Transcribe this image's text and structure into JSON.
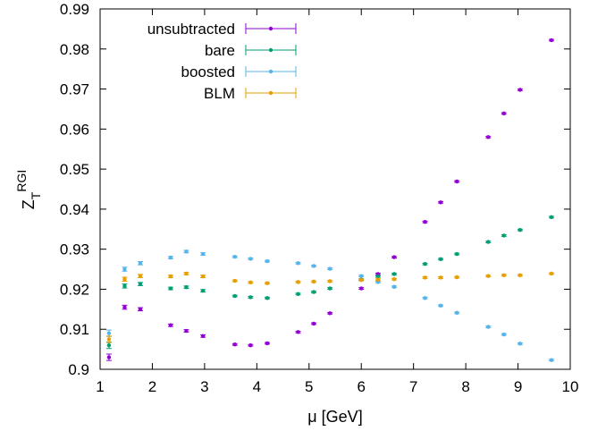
{
  "chart_data": {
    "type": "scatter",
    "xlabel": "μ [GeV]",
    "ylabel": {
      "main": "Z",
      "sub": "T",
      "sup": "RGI"
    },
    "xlim": [
      1,
      10
    ],
    "ylim": [
      0.9,
      0.99
    ],
    "xticks": [
      "1",
      "2",
      "3",
      "4",
      "5",
      "6",
      "7",
      "8",
      "9",
      "10"
    ],
    "yticks": [
      "0.9",
      "0.91",
      "0.92",
      "0.93",
      "0.94",
      "0.95",
      "0.96",
      "0.97",
      "0.98",
      "0.99"
    ],
    "xtick_values": [
      1,
      2,
      3,
      4,
      5,
      6,
      7,
      8,
      9,
      10
    ],
    "ytick_values": [
      0.9,
      0.91,
      0.92,
      0.93,
      0.94,
      0.95,
      0.96,
      0.97,
      0.98,
      0.99
    ],
    "grid": false,
    "legend_position": "top-left",
    "series": [
      {
        "name": "unsubtracted",
        "color": "#9400d3",
        "x": [
          1.17,
          1.47,
          1.77,
          2.35,
          2.65,
          2.97,
          3.58,
          3.88,
          4.2,
          4.79,
          5.09,
          5.4,
          6.0,
          6.32,
          6.63,
          7.22,
          7.52,
          7.83,
          8.43,
          8.73,
          9.04,
          9.64
        ],
        "y": [
          0.903,
          0.9155,
          0.915,
          0.911,
          0.9096,
          0.9083,
          0.9062,
          0.906,
          0.9065,
          0.9093,
          0.9114,
          0.914,
          0.9202,
          0.9238,
          0.928,
          0.9368,
          0.9417,
          0.9469,
          0.958,
          0.9639,
          0.9698,
          0.9822
        ],
        "err": [
          0.0008,
          0.0005,
          0.0004,
          0.0003,
          0.0003,
          0.0003,
          0.0002,
          0.0002,
          0.0002,
          0.0002,
          0.0002,
          0.0002,
          0.0002,
          0.0002,
          0.0002,
          0.0002,
          0.0002,
          0.0002,
          0.0002,
          0.0002,
          0.0002,
          0.0002
        ]
      },
      {
        "name": "bare",
        "color": "#009e73",
        "x": [
          1.17,
          1.47,
          1.77,
          2.35,
          2.65,
          2.97,
          3.58,
          3.88,
          4.2,
          4.79,
          5.09,
          5.4,
          6.0,
          6.32,
          6.63,
          7.22,
          7.52,
          7.83,
          8.43,
          8.73,
          9.04,
          9.64
        ],
        "y": [
          0.906,
          0.9208,
          0.9213,
          0.9202,
          0.9205,
          0.9196,
          0.9183,
          0.918,
          0.9178,
          0.9188,
          0.9193,
          0.9202,
          0.9224,
          0.9232,
          0.9238,
          0.9263,
          0.9275,
          0.9288,
          0.9318,
          0.9334,
          0.9348,
          0.938
        ],
        "err": [
          0.0008,
          0.0005,
          0.0004,
          0.0003,
          0.0003,
          0.0003,
          0.0002,
          0.0002,
          0.0002,
          0.0002,
          0.0002,
          0.0002,
          0.0002,
          0.0002,
          0.0002,
          0.0002,
          0.0002,
          0.0002,
          0.0002,
          0.0002,
          0.0002,
          0.0002
        ]
      },
      {
        "name": "boosted",
        "color": "#56b4e9",
        "x": [
          1.17,
          1.47,
          1.77,
          2.35,
          2.65,
          2.97,
          3.58,
          3.88,
          4.2,
          4.79,
          5.09,
          5.4,
          6.0,
          6.32,
          6.63,
          7.22,
          7.52,
          7.83,
          8.43,
          8.73,
          9.04,
          9.64
        ],
        "y": [
          0.909,
          0.925,
          0.9265,
          0.9279,
          0.9294,
          0.9288,
          0.9281,
          0.9276,
          0.927,
          0.9265,
          0.9258,
          0.9251,
          0.9233,
          0.9218,
          0.9206,
          0.9178,
          0.9159,
          0.9141,
          0.9106,
          0.9087,
          0.9064,
          0.9023
        ],
        "err": [
          0.0008,
          0.0005,
          0.0004,
          0.0003,
          0.0003,
          0.0003,
          0.0002,
          0.0002,
          0.0002,
          0.0002,
          0.0002,
          0.0002,
          0.0002,
          0.0002,
          0.0002,
          0.0002,
          0.0002,
          0.0002,
          0.0002,
          0.0002,
          0.0002,
          0.0002
        ]
      },
      {
        "name": "BLM",
        "color": "#e69f00",
        "x": [
          1.17,
          1.47,
          1.77,
          2.35,
          2.65,
          2.97,
          3.58,
          3.88,
          4.2,
          4.79,
          5.09,
          5.4,
          6.0,
          6.32,
          6.63,
          7.22,
          7.52,
          7.83,
          8.43,
          8.73,
          9.04,
          9.64
        ],
        "y": [
          0.9075,
          0.9225,
          0.9233,
          0.9232,
          0.9239,
          0.9232,
          0.9221,
          0.9217,
          0.9215,
          0.9218,
          0.9219,
          0.922,
          0.9223,
          0.9224,
          0.9225,
          0.9229,
          0.9229,
          0.923,
          0.9233,
          0.9235,
          0.9235,
          0.9239
        ],
        "err": [
          0.0008,
          0.0005,
          0.0004,
          0.0003,
          0.0003,
          0.0003,
          0.0002,
          0.0002,
          0.0002,
          0.0002,
          0.0002,
          0.0002,
          0.0002,
          0.0002,
          0.0002,
          0.0002,
          0.0002,
          0.0002,
          0.0002,
          0.0002,
          0.0002,
          0.0002
        ]
      }
    ]
  }
}
